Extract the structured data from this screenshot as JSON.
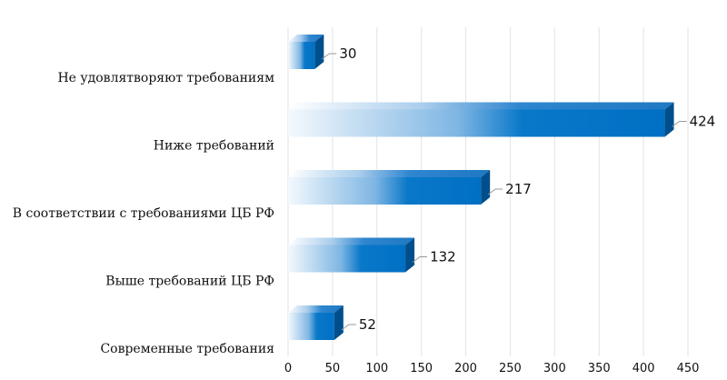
{
  "chart_data": {
    "type": "bar",
    "orientation": "horizontal",
    "style": "3d-gradient",
    "categories": [
      "Не удовлятворяют требованиям",
      "Ниже требований",
      "В соответствии с требованиями ЦБ РФ",
      "Выше требований ЦБ РФ",
      "Современные требования"
    ],
    "values": [
      30,
      424,
      217,
      132,
      52
    ],
    "data_labels": [
      "30",
      "424",
      "217",
      "132",
      "52"
    ],
    "xlim": [
      0,
      450
    ],
    "x_ticks": [
      "0",
      "50",
      "100",
      "150",
      "200",
      "250",
      "300",
      "350",
      "400",
      "450"
    ],
    "grid": "vertical",
    "legend": "none",
    "title": "",
    "xlabel": "",
    "ylabel": "",
    "colors": {
      "bar_front": "#0072c6",
      "bar_light": "#ffffff",
      "bar_top": "#3a8fd6",
      "bar_side": "#004f8c"
    }
  }
}
